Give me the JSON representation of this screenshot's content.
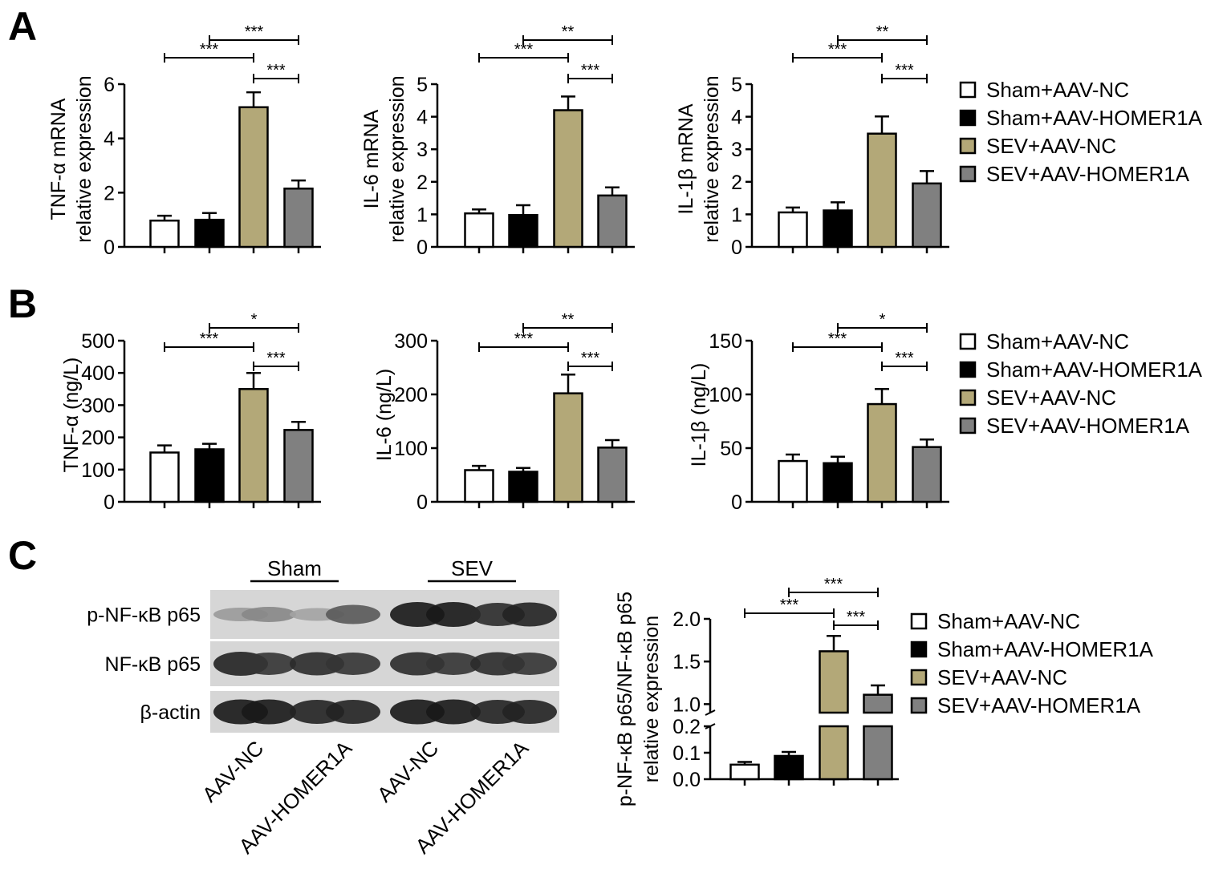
{
  "panels": [
    "A",
    "B",
    "C"
  ],
  "groups": [
    "Sham+AAV-NC",
    "Sham+AAV-HOMER1A",
    "SEV+AAV-NC",
    "SEV+AAV-HOMER1A"
  ],
  "colors": {
    "Sham+AAV-NC": "#ffffff",
    "Sham+AAV-HOMER1A": "#000000",
    "SEV+AAV-NC": "#b3a878",
    "SEV+AAV-HOMER1A": "#808080"
  },
  "chart_data": [
    {
      "id": "A1",
      "panel": "A",
      "type": "bar",
      "ylabel": [
        "TNF-α mRNA",
        "relative expression"
      ],
      "ylim": [
        0,
        6
      ],
      "yticks": [
        0,
        2,
        4,
        6
      ],
      "values": [
        0.97,
        1.0,
        5.15,
        2.15
      ],
      "errors": [
        0.18,
        0.25,
        0.55,
        0.3
      ],
      "significance": [
        {
          "from": 1,
          "to": 3,
          "label": "***"
        },
        {
          "from": 0,
          "to": 2,
          "label": "***"
        },
        {
          "from": 2,
          "to": 3,
          "label": "***"
        }
      ]
    },
    {
      "id": "A2",
      "panel": "A",
      "type": "bar",
      "ylabel": [
        "IL-6 mRNA",
        "relative expression"
      ],
      "ylim": [
        0,
        5
      ],
      "yticks": [
        0,
        1,
        2,
        3,
        4,
        5
      ],
      "values": [
        1.03,
        0.98,
        4.2,
        1.58
      ],
      "errors": [
        0.12,
        0.3,
        0.42,
        0.25
      ],
      "significance": [
        {
          "from": 1,
          "to": 3,
          "label": "**"
        },
        {
          "from": 0,
          "to": 2,
          "label": "***"
        },
        {
          "from": 2,
          "to": 3,
          "label": "***"
        }
      ]
    },
    {
      "id": "A3",
      "panel": "A",
      "type": "bar",
      "ylabel": [
        "IL-1β mRNA",
        "relative expression"
      ],
      "ylim": [
        0,
        5
      ],
      "yticks": [
        0,
        1,
        2,
        3,
        4,
        5
      ],
      "values": [
        1.06,
        1.12,
        3.48,
        1.95
      ],
      "errors": [
        0.15,
        0.25,
        0.53,
        0.38
      ],
      "significance": [
        {
          "from": 1,
          "to": 3,
          "label": "**"
        },
        {
          "from": 0,
          "to": 2,
          "label": "***"
        },
        {
          "from": 2,
          "to": 3,
          "label": "***"
        }
      ]
    },
    {
      "id": "B1",
      "panel": "B",
      "type": "bar",
      "ylabel": [
        "TNF-α (ng/L)"
      ],
      "ylim": [
        0,
        500
      ],
      "yticks": [
        0,
        100,
        200,
        300,
        400,
        500
      ],
      "values": [
        153,
        163,
        350,
        223
      ],
      "errors": [
        22,
        17,
        50,
        25
      ],
      "significance": [
        {
          "from": 1,
          "to": 3,
          "label": "*"
        },
        {
          "from": 0,
          "to": 2,
          "label": "***"
        },
        {
          "from": 2,
          "to": 3,
          "label": "***"
        }
      ]
    },
    {
      "id": "B2",
      "panel": "B",
      "type": "bar",
      "ylabel": [
        "IL-6 (ng/L)"
      ],
      "ylim": [
        0,
        300
      ],
      "yticks": [
        0,
        100,
        200,
        300
      ],
      "values": [
        59,
        56,
        202,
        101
      ],
      "errors": [
        8,
        7,
        35,
        14
      ],
      "significance": [
        {
          "from": 1,
          "to": 3,
          "label": "**"
        },
        {
          "from": 0,
          "to": 2,
          "label": "***"
        },
        {
          "from": 2,
          "to": 3,
          "label": "***"
        }
      ]
    },
    {
      "id": "B3",
      "panel": "B",
      "type": "bar",
      "ylabel": [
        "IL-1β (ng/L)"
      ],
      "ylim": [
        0,
        150
      ],
      "yticks": [
        0,
        50,
        100,
        150
      ],
      "values": [
        38,
        36,
        91,
        51
      ],
      "errors": [
        6,
        6,
        14,
        7
      ],
      "significance": [
        {
          "from": 1,
          "to": 3,
          "label": "*"
        },
        {
          "from": 0,
          "to": 2,
          "label": "***"
        },
        {
          "from": 2,
          "to": 3,
          "label": "***"
        }
      ]
    },
    {
      "id": "C1",
      "panel": "C",
      "type": "bar",
      "ylabel": [
        "p-NF-κB p65/NF-κB p65",
        "relative expression"
      ],
      "axis_break": {
        "lower": [
          0,
          0.2
        ],
        "upper": [
          0.9,
          2.0
        ]
      },
      "yticks_lower": [
        0.0,
        0.1,
        0.2
      ],
      "yticks_upper": [
        1.0,
        1.5,
        2.0
      ],
      "ytick_labels_lower": [
        "0.0",
        "0.1",
        "0.2"
      ],
      "ytick_labels_upper": [
        "1.0",
        "1.5",
        "2.0"
      ],
      "values": [
        0.055,
        0.088,
        1.62,
        1.11
      ],
      "errors": [
        0.01,
        0.015,
        0.18,
        0.11
      ],
      "significance": [
        {
          "from": 1,
          "to": 3,
          "label": "***"
        },
        {
          "from": 0,
          "to": 2,
          "label": "***"
        },
        {
          "from": 2,
          "to": 3,
          "label": "***"
        }
      ]
    }
  ],
  "blot": {
    "group_labels": [
      "Sham",
      "SEV"
    ],
    "rows": [
      {
        "label": "p-NF-κB p65",
        "intensities": [
          0.25,
          0.35,
          0.2,
          0.6,
          0.95,
          0.95,
          0.85,
          0.9
        ]
      },
      {
        "label": "NF-κB p65",
        "intensities": [
          0.9,
          0.8,
          0.85,
          0.8,
          0.85,
          0.8,
          0.85,
          0.8
        ]
      },
      {
        "label": "β-actin",
        "intensities": [
          0.95,
          0.95,
          0.9,
          0.9,
          0.95,
          0.95,
          0.9,
          0.9
        ]
      }
    ],
    "lane_labels": [
      "AAV-NC",
      "AAV-HOMER1A",
      "AAV-NC",
      "AAV-HOMER1A"
    ]
  }
}
